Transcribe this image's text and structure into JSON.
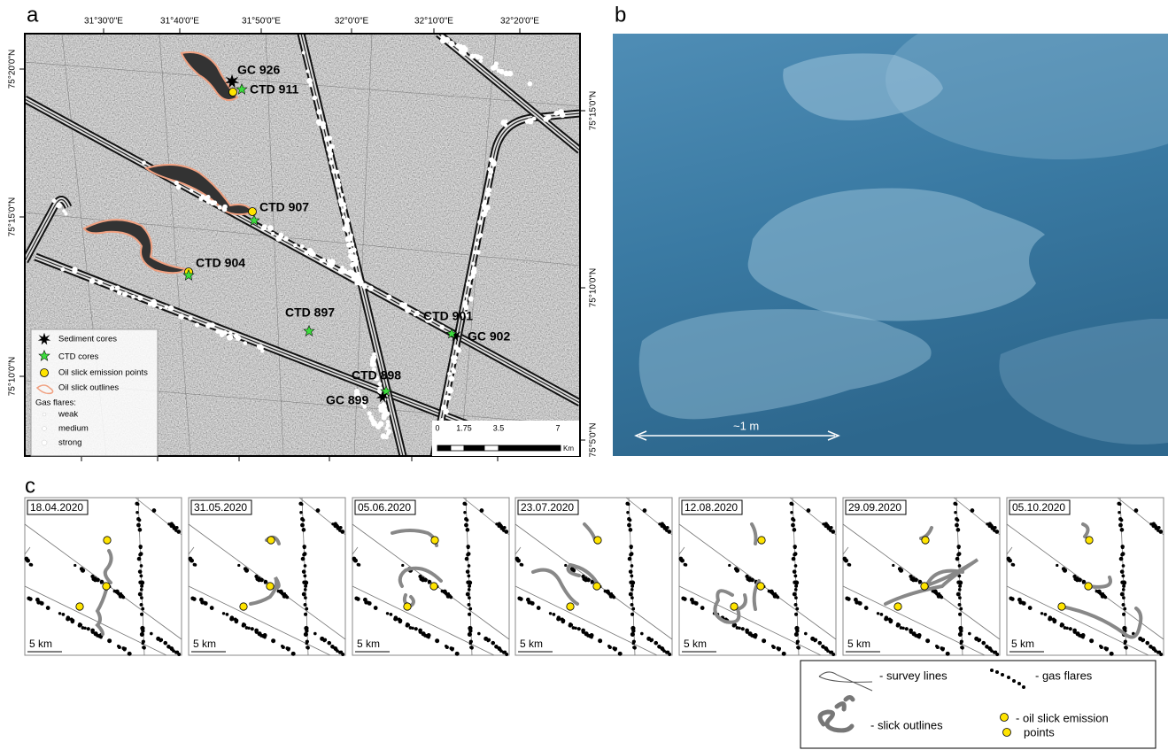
{
  "panels": {
    "a": {
      "label": "a",
      "lon_labels": [
        "31°30'0\"E",
        "31°40'0\"E",
        "31°50'0\"E",
        "32°0'0\"E",
        "32°10'0\"E",
        "32°20'0\"E"
      ],
      "lat_labels_left": [
        "75°20'0\"N",
        "75°15'0\"N",
        "75°10'0\"N"
      ],
      "lat_labels_right": [
        "75°15'0\"N",
        "75°10'0\"N",
        "75°5'0\"N"
      ],
      "stations": [
        {
          "label": "GC 926"
        },
        {
          "label": "CTD 911"
        },
        {
          "label": "CTD 907"
        },
        {
          "label": "CTD 904"
        },
        {
          "label": "CTD 897"
        },
        {
          "label": "CTD 901"
        },
        {
          "label": "GC 902"
        },
        {
          "label": "CTD 898"
        },
        {
          "label": "GC 899"
        }
      ],
      "legend": {
        "items": [
          "Sediment cores",
          "CTD cores",
          "Oil slick emission points",
          "Oil slick outlines"
        ],
        "gas_flares_title": "Gas flares:",
        "gas_flares": [
          "weak",
          "medium",
          "strong"
        ]
      },
      "scale_bar": {
        "ticks": [
          "0",
          "1.75",
          "3.5",
          "7"
        ],
        "unit": "Km"
      }
    },
    "b": {
      "label": "b",
      "scale_label": "~1 m"
    },
    "c": {
      "label": "c",
      "snapshots": [
        {
          "date": "18.04.2020",
          "scale": "5 km"
        },
        {
          "date": "31.05.2020",
          "scale": "5 km"
        },
        {
          "date": "05.06.2020",
          "scale": "5 km"
        },
        {
          "date": "23.07.2020",
          "scale": "5 km"
        },
        {
          "date": "12.08.2020",
          "scale": "5 km"
        },
        {
          "date": "29.09.2020",
          "scale": "5 km"
        },
        {
          "date": "05.10.2020",
          "scale": "5 km"
        }
      ],
      "legend": {
        "survey_lines": "- survey lines",
        "gas_flares": "- gas flares",
        "slick_outlines": "- slick outlines",
        "emission_points": [
          "- oil slick emission",
          "points"
        ]
      }
    }
  }
}
